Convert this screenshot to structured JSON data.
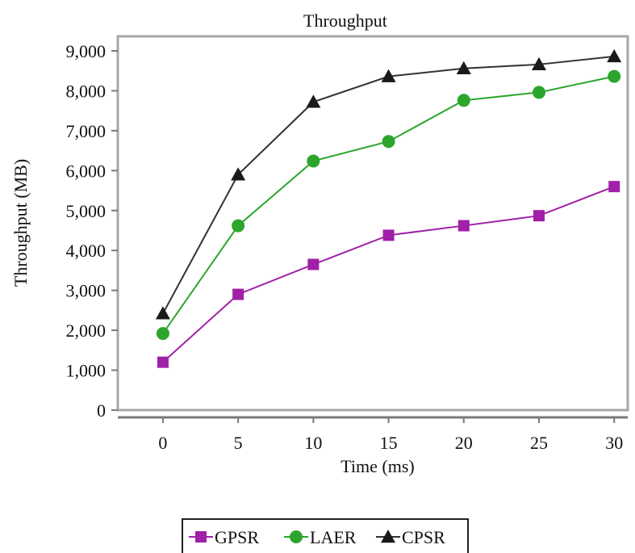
{
  "chart_data": {
    "type": "line",
    "title": "Throughput",
    "xlabel": "Time (ms)",
    "ylabel": "Throughput (MB)",
    "x": [
      0,
      5,
      10,
      15,
      20,
      25,
      30
    ],
    "x_ticks": [
      "0",
      "5",
      "10",
      "15",
      "20",
      "25",
      "30"
    ],
    "xlim": [
      -3,
      30.9
    ],
    "ylim": [
      0,
      9000
    ],
    "y_ticks": [
      "0",
      "1,000",
      "2,000",
      "3,000",
      "4,000",
      "5,000",
      "6,000",
      "7,000",
      "8,000",
      "9,000"
    ],
    "y_tick_values": [
      0,
      1000,
      2000,
      3000,
      4000,
      5000,
      6000,
      7000,
      8000,
      9000
    ],
    "grid": false,
    "legend_position": "bottom-center",
    "series": [
      {
        "name": "GPSR",
        "marker": "square",
        "color": "#a020a8",
        "values": [
          1200,
          2900,
          3650,
          4380,
          4620,
          4870,
          5600
        ]
      },
      {
        "name": "LAER",
        "marker": "circle",
        "color": "#2ca52c",
        "values": [
          1920,
          4620,
          6240,
          6730,
          7760,
          7960,
          8360
        ]
      },
      {
        "name": "CPSR",
        "marker": "triangle",
        "color": "#1a1a1a",
        "line_color": "#333333",
        "values": [
          2420,
          5900,
          7720,
          8360,
          8560,
          8660,
          8860
        ]
      }
    ]
  }
}
